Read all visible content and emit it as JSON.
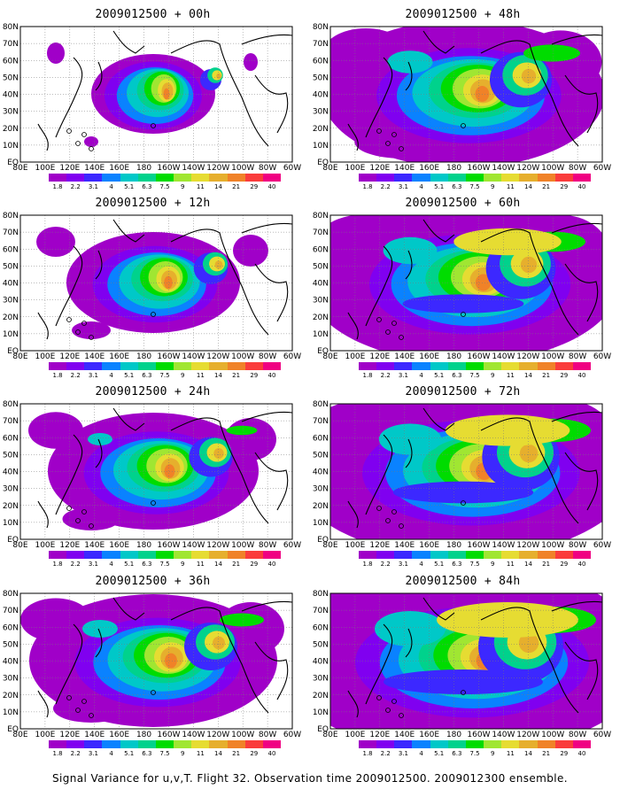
{
  "caption": "Signal Variance for u,v,T. Flight 32. Observation time 2009012500. 2009012300 ensemble.",
  "lat_labels": [
    "80N",
    "70N",
    "60N",
    "50N",
    "40N",
    "30N",
    "20N",
    "10N",
    "EQ"
  ],
  "lon_labels": [
    "80E",
    "100E",
    "120E",
    "140E",
    "160E",
    "180",
    "160W",
    "140W",
    "120W",
    "100W",
    "80W",
    "60W"
  ],
  "colorbar": {
    "labels": [
      "1.8",
      "2.2",
      "3.1",
      "4",
      "5.1",
      "6.3",
      "7.5",
      "9",
      "11",
      "14",
      "21",
      "29",
      "40"
    ],
    "colors": [
      "#a000c8",
      "#8000f0",
      "#3c28ff",
      "#0a82ff",
      "#00c8c8",
      "#00d28c",
      "#00dc00",
      "#a0e632",
      "#e6dc32",
      "#e6af2d",
      "#f08228",
      "#fa3c3c",
      "#f00082"
    ]
  },
  "panels": [
    {
      "title": "2009012500 + 00h",
      "level": 0
    },
    {
      "title": "2009012500 + 48h",
      "level": 0.64
    },
    {
      "title": "2009012500 + 12h",
      "level": 0.2
    },
    {
      "title": "2009012500 + 60h",
      "level": 0.76
    },
    {
      "title": "2009012500 + 24h",
      "level": 0.35
    },
    {
      "title": "2009012500 + 72h",
      "level": 0.88
    },
    {
      "title": "2009012500 + 36h",
      "level": 0.5
    },
    {
      "title": "2009012500 + 84h",
      "level": 1.0
    }
  ]
}
